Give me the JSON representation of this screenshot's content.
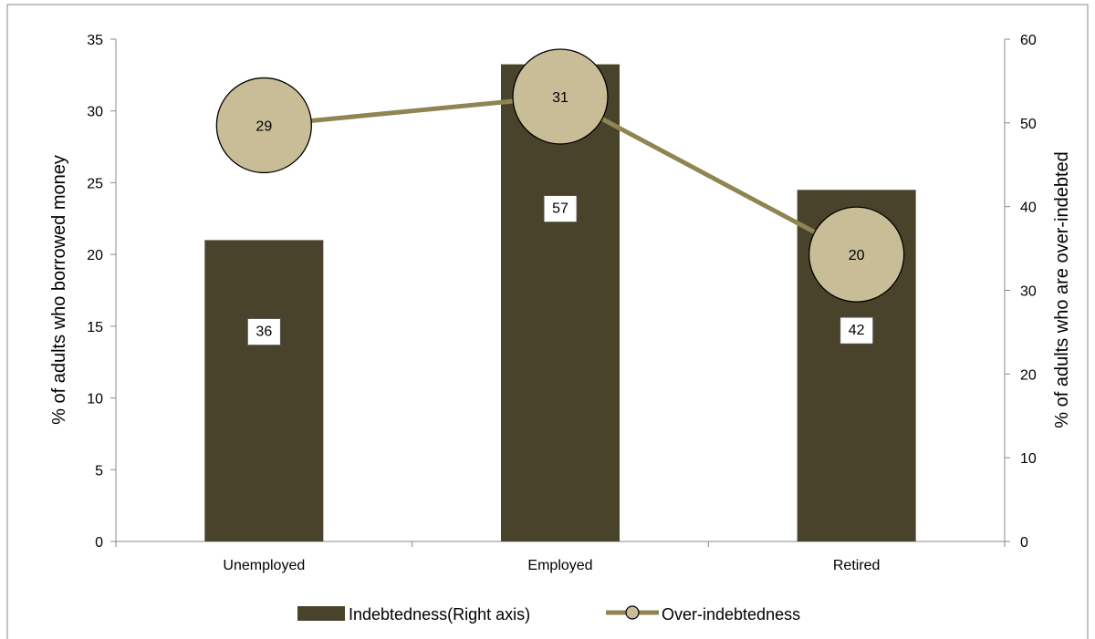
{
  "chart_data": {
    "type": "bar",
    "categories": [
      "Unemployed",
      "Employed",
      "Retired"
    ],
    "series": [
      {
        "name": "Indebtedness(Right axis)",
        "type": "bar",
        "axis": "right",
        "values": [
          36,
          57,
          42
        ],
        "color": "#4a432b"
      },
      {
        "name": "Over-indebtedness",
        "type": "line",
        "axis": "left",
        "values": [
          29,
          31,
          20
        ],
        "color": "#8f8552",
        "marker_fill": "#c8bd96"
      }
    ],
    "ylabel": "% of adults who borrowed money",
    "y2label": "% of adults who are over-indebted",
    "ylim": [
      0,
      35
    ],
    "y2lim": [
      0,
      60
    ],
    "yticks": [
      "0",
      "5",
      "10",
      "15",
      "20",
      "25",
      "30",
      "35"
    ],
    "y2ticks": [
      "0",
      "10",
      "20",
      "30",
      "40",
      "50",
      "60"
    ],
    "legend_position": "bottom",
    "grid": false
  }
}
